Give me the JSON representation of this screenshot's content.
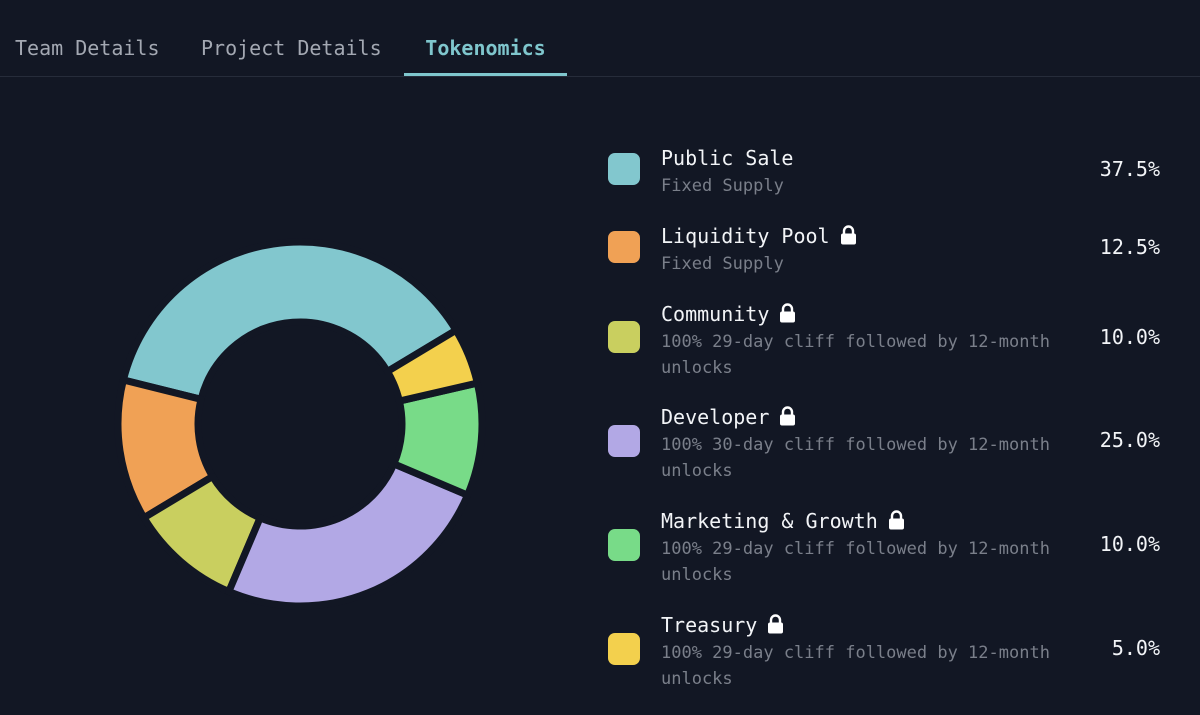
{
  "tabs": [
    {
      "label": "Team Details",
      "active": false
    },
    {
      "label": "Project Details",
      "active": false
    },
    {
      "label": "Tokenomics",
      "active": true
    }
  ],
  "colors": {
    "background": "#121724",
    "accent": "#7fc6cd"
  },
  "chart_data": {
    "type": "pie",
    "categories": [
      "Public Sale",
      "Liquidity Pool",
      "Community",
      "Developer",
      "Marketing & Growth",
      "Treasury"
    ],
    "values": [
      37.5,
      12.5,
      10.0,
      25.0,
      10.0,
      5.0
    ],
    "colors": [
      "#82c7ce",
      "#f0a155",
      "#c9cf5f",
      "#b2a8e5",
      "#78db88",
      "#f3d04d"
    ],
    "legend_position": "right"
  },
  "legend": [
    {
      "name": "Public Sale",
      "desc": "Fixed Supply",
      "pct": "37.5%",
      "locked": false,
      "color": "#82c7ce"
    },
    {
      "name": "Liquidity Pool",
      "desc": "Fixed Supply",
      "pct": "12.5%",
      "locked": true,
      "color": "#f0a155"
    },
    {
      "name": "Community",
      "desc": "100% 29-day cliff followed by 12-month unlocks",
      "pct": "10.0%",
      "locked": true,
      "color": "#c9cf5f"
    },
    {
      "name": "Developer",
      "desc": "100% 30-day cliff followed by 12-month unlocks",
      "pct": "25.0%",
      "locked": true,
      "color": "#b2a8e5"
    },
    {
      "name": "Marketing & Growth",
      "desc": "100% 29-day cliff followed by 12-month unlocks",
      "pct": "10.0%",
      "locked": true,
      "color": "#78db88"
    },
    {
      "name": "Treasury",
      "desc": "100% 29-day cliff followed by 12-month unlocks",
      "pct": "5.0%",
      "locked": true,
      "color": "#f3d04d"
    }
  ]
}
